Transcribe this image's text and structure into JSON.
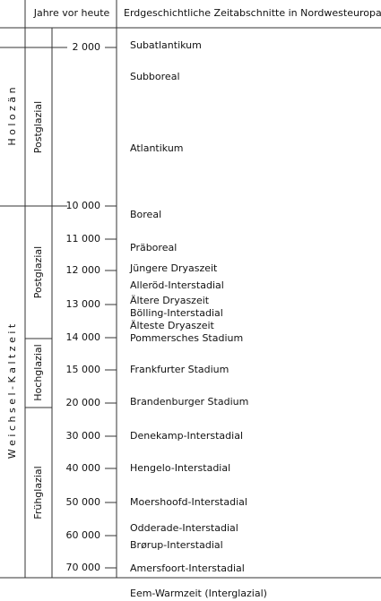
{
  "header": {
    "years": "Jahre vor heute",
    "periods": "Erdgeschichtliche Zeitabschnitte in Nordwesteuropa"
  },
  "epochs": [
    {
      "label": "H o l o z ä n"
    },
    {
      "label": "W e i c h s e l - K a l t z e i t"
    }
  ],
  "subdivisions": [
    {
      "label": "Postglazial"
    },
    {
      "label": "Postglazial"
    },
    {
      "label": "Hochglazial"
    },
    {
      "label": "Frühglazial"
    }
  ],
  "ticks": [
    "2 000",
    "10 000",
    "11 000",
    "12 000",
    "13 000",
    "14 000",
    "15 000",
    "20 000",
    "30 000",
    "40 000",
    "50 000",
    "60 000",
    "70 000"
  ],
  "periods": [
    "Subatlantikum",
    "Subboreal",
    "Atlantikum",
    "Boreal",
    "Präboreal",
    "Jüngere Dryaszeit",
    "Alleröd-Interstadial",
    "Ältere Dryaszeit",
    "Bölling-Interstadial",
    "Älteste Dryaszeit",
    "Pommersches Stadium",
    "Frankfurter Stadium",
    "Brandenburger Stadium",
    "Denekamp-Interstadial",
    "Hengelo-Interstadial",
    "Moershoofd-Interstadial",
    "Odderade-Interstadial",
    "Brørup-Interstadial",
    "Amersfoort-Interstadial"
  ],
  "footer": "Eem-Warmzeit (Interglazial)"
}
